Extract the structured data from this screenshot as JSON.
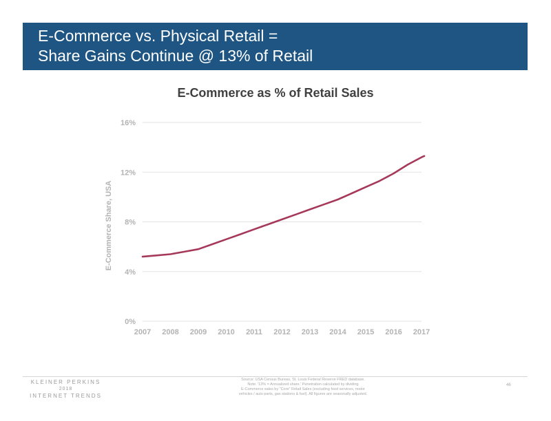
{
  "slide": {
    "title_lines": [
      "E-Commerce vs. Physical Retail =",
      "Share Gains Continue @ 13% of Retail"
    ],
    "page_number": "46"
  },
  "footer": {
    "brand_lines": [
      "KLEINER PERKINS",
      "2018",
      "INTERNET TRENDS"
    ],
    "source_lines": [
      "Source: USA Census Bureau, St. Louis Federal Reserve FRED database.",
      "Note: '13% = Annualized share.' Penetration calculated by dividing",
      "E-Commerce sales by \"Core\" Retail Sales (excluding food services, motor",
      "vehicles / auto parts, gas stations & fuel). All figures are seasonally adjusted."
    ]
  },
  "colors": {
    "title_bar": "#1f5583",
    "series_line": "#a6385a",
    "grid": "#e3e3e3",
    "axis_text": "#b3b3b3"
  },
  "chart_data": {
    "type": "line",
    "title": "E-Commerce as % of Retail Sales",
    "ylabel": "E-Commerce Share, USA",
    "xlabel": "",
    "ylim": [
      0,
      16
    ],
    "y_ticks": [
      0,
      4,
      8,
      12,
      16
    ],
    "y_tick_labels": [
      "0%",
      "4%",
      "8%",
      "12%",
      "16%"
    ],
    "x_start": 2007,
    "x_end": 2017.1,
    "x_ticks": [
      "2007",
      "2008",
      "2009",
      "2010",
      "2011",
      "2012",
      "2013",
      "2014",
      "2015",
      "2016",
      "2017"
    ],
    "grid": true,
    "legend": "none",
    "series": [
      {
        "x": [
          2007,
          2007.5,
          2008,
          2008.5,
          2009,
          2009.5,
          2010,
          2010.5,
          2011,
          2011.5,
          2012,
          2012.5,
          2013,
          2013.5,
          2014,
          2014.5,
          2015,
          2015.5,
          2016,
          2016.5,
          2017,
          2017.1
        ],
        "values": [
          5.2,
          5.3,
          5.4,
          5.6,
          5.8,
          6.2,
          6.6,
          7.0,
          7.4,
          7.8,
          8.2,
          8.6,
          9.0,
          9.4,
          9.8,
          10.3,
          10.8,
          11.3,
          11.9,
          12.6,
          13.2,
          13.3
        ]
      }
    ]
  }
}
